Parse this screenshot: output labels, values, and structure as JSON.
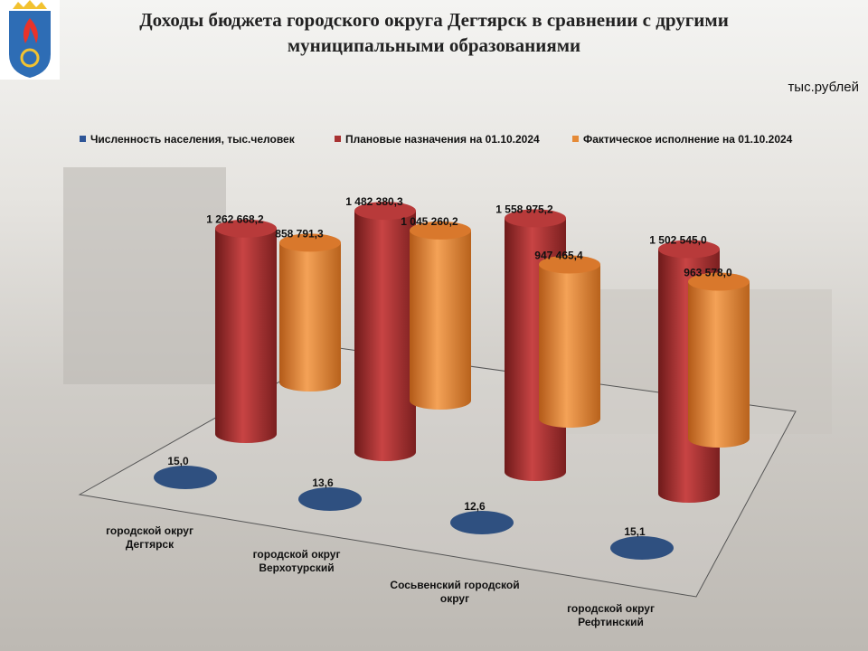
{
  "chart_data": {
    "type": "bar3d",
    "title": "Доходы бюджета городского округа Дегтярск в сравнении с другими муниципальными образованиями",
    "unit_label": "тыс.рублей",
    "categories": [
      "городской округ Дегтярск",
      "городской округ Верхотурский",
      "Сосьвенский городской округ",
      "городской округ Рефтинский"
    ],
    "series": [
      {
        "name": "Численность населения, тыс.человек",
        "color": "#2e5597",
        "values": [
          15.0,
          13.6,
          12.6,
          15.1
        ],
        "value_labels": [
          "15,0",
          "13,6",
          "12,6",
          "15,1"
        ]
      },
      {
        "name": "Плановые назначения на 01.10.2024",
        "color": "#a83232",
        "values": [
          1262668.2,
          1482380.3,
          1558975.2,
          1502545.0
        ],
        "value_labels": [
          "1 262 668,2",
          "1 482 380,3",
          "1 558 975,2",
          "1 502 545,0"
        ]
      },
      {
        "name": "Фактическое исполнение на 01.10.2024",
        "color": "#e58a37",
        "values": [
          858791.3,
          1045260.2,
          947465.4,
          963578.0
        ],
        "value_labels": [
          "858 791,3",
          "1 045 260,2",
          "947 465,4",
          "963 578,0"
        ]
      }
    ],
    "legend": "top"
  }
}
